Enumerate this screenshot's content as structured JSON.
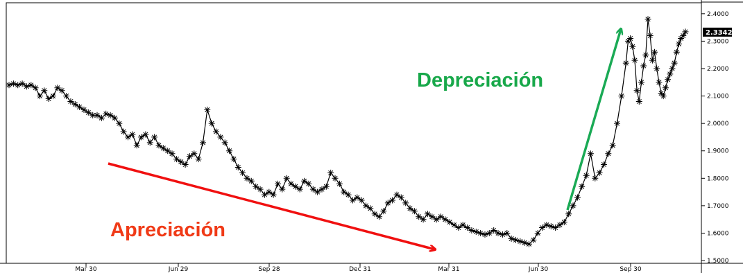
{
  "chart_data": {
    "type": "line",
    "title": "",
    "xlabel": "",
    "ylabel": "",
    "x_ticks": [
      "Mar 30",
      "Jun 29",
      "Sep 28",
      "Dec 31",
      "Mar 31",
      "Jun 30",
      "Sep 30"
    ],
    "y_ticks": [
      "2.4000",
      "2.3000",
      "2.2000",
      "2.1000",
      "2.0000",
      "1.9000",
      "1.8000",
      "1.7000",
      "1.6000",
      "1.5000"
    ],
    "ylim": [
      1.49,
      2.44
    ],
    "grid": false,
    "last_value": "2.3342",
    "annotations": [
      {
        "text": "Depreciación",
        "color": "#18a84a"
      },
      {
        "text": "Apreciación",
        "color": "#f03a17"
      }
    ],
    "arrow_colors": {
      "up": "#1aaa55",
      "down": "#f01010"
    },
    "series": [
      {
        "marker": "asterisk",
        "color": "#000000",
        "points": [
          [
            0,
            2.14
          ],
          [
            2,
            2.145
          ],
          [
            4,
            2.14
          ],
          [
            6,
            2.145
          ],
          [
            8,
            2.135
          ],
          [
            10,
            2.14
          ],
          [
            12,
            2.13
          ],
          [
            14,
            2.1
          ],
          [
            16,
            2.12
          ],
          [
            18,
            2.09
          ],
          [
            20,
            2.1
          ],
          [
            22,
            2.13
          ],
          [
            24,
            2.12
          ],
          [
            26,
            2.1
          ],
          [
            28,
            2.08
          ],
          [
            30,
            2.07
          ],
          [
            32,
            2.06
          ],
          [
            34,
            2.05
          ],
          [
            36,
            2.04
          ],
          [
            38,
            2.03
          ],
          [
            40,
            2.03
          ],
          [
            42,
            2.02
          ],
          [
            44,
            2.035
          ],
          [
            46,
            2.03
          ],
          [
            48,
            2.02
          ],
          [
            50,
            2.0
          ],
          [
            52,
            1.97
          ],
          [
            54,
            1.95
          ],
          [
            56,
            1.96
          ],
          [
            58,
            1.92
          ],
          [
            60,
            1.95
          ],
          [
            62,
            1.96
          ],
          [
            64,
            1.93
          ],
          [
            66,
            1.95
          ],
          [
            68,
            1.92
          ],
          [
            70,
            1.91
          ],
          [
            72,
            1.9
          ],
          [
            74,
            1.89
          ],
          [
            76,
            1.87
          ],
          [
            78,
            1.86
          ],
          [
            80,
            1.85
          ],
          [
            82,
            1.88
          ],
          [
            84,
            1.89
          ],
          [
            86,
            1.87
          ],
          [
            88,
            1.93
          ],
          [
            90,
            2.05
          ],
          [
            92,
            2.0
          ],
          [
            94,
            1.97
          ],
          [
            96,
            1.95
          ],
          [
            98,
            1.93
          ],
          [
            100,
            1.9
          ],
          [
            102,
            1.87
          ],
          [
            104,
            1.84
          ],
          [
            106,
            1.82
          ],
          [
            108,
            1.8
          ],
          [
            110,
            1.79
          ],
          [
            112,
            1.77
          ],
          [
            114,
            1.76
          ],
          [
            116,
            1.74
          ],
          [
            118,
            1.75
          ],
          [
            120,
            1.74
          ],
          [
            122,
            1.78
          ],
          [
            124,
            1.76
          ],
          [
            126,
            1.8
          ],
          [
            128,
            1.78
          ],
          [
            130,
            1.77
          ],
          [
            132,
            1.76
          ],
          [
            134,
            1.79
          ],
          [
            136,
            1.78
          ],
          [
            138,
            1.76
          ],
          [
            140,
            1.75
          ],
          [
            142,
            1.76
          ],
          [
            144,
            1.77
          ],
          [
            146,
            1.82
          ],
          [
            148,
            1.8
          ],
          [
            150,
            1.78
          ],
          [
            152,
            1.75
          ],
          [
            154,
            1.74
          ],
          [
            156,
            1.72
          ],
          [
            158,
            1.73
          ],
          [
            160,
            1.72
          ],
          [
            162,
            1.7
          ],
          [
            164,
            1.69
          ],
          [
            166,
            1.67
          ],
          [
            168,
            1.66
          ],
          [
            170,
            1.68
          ],
          [
            172,
            1.71
          ],
          [
            174,
            1.72
          ],
          [
            176,
            1.74
          ],
          [
            178,
            1.73
          ],
          [
            180,
            1.71
          ],
          [
            182,
            1.69
          ],
          [
            184,
            1.68
          ],
          [
            186,
            1.66
          ],
          [
            188,
            1.65
          ],
          [
            190,
            1.67
          ],
          [
            192,
            1.66
          ],
          [
            194,
            1.65
          ],
          [
            196,
            1.66
          ],
          [
            198,
            1.65
          ],
          [
            200,
            1.64
          ],
          [
            202,
            1.63
          ],
          [
            204,
            1.62
          ],
          [
            206,
            1.63
          ],
          [
            208,
            1.62
          ],
          [
            210,
            1.61
          ],
          [
            212,
            1.605
          ],
          [
            214,
            1.6
          ],
          [
            216,
            1.595
          ],
          [
            218,
            1.6
          ],
          [
            220,
            1.61
          ],
          [
            222,
            1.6
          ],
          [
            224,
            1.595
          ],
          [
            226,
            1.6
          ],
          [
            228,
            1.58
          ],
          [
            230,
            1.575
          ],
          [
            232,
            1.57
          ],
          [
            234,
            1.565
          ],
          [
            236,
            1.56
          ],
          [
            238,
            1.575
          ],
          [
            240,
            1.6
          ],
          [
            242,
            1.62
          ],
          [
            244,
            1.63
          ],
          [
            246,
            1.625
          ],
          [
            248,
            1.62
          ],
          [
            250,
            1.63
          ],
          [
            252,
            1.64
          ],
          [
            254,
            1.67
          ],
          [
            256,
            1.7
          ],
          [
            258,
            1.73
          ],
          [
            260,
            1.77
          ],
          [
            262,
            1.81
          ],
          [
            264,
            1.89
          ],
          [
            266,
            1.8
          ],
          [
            268,
            1.82
          ],
          [
            270,
            1.85
          ],
          [
            272,
            1.89
          ],
          [
            274,
            1.92
          ],
          [
            276,
            2.0
          ],
          [
            278,
            2.1
          ],
          [
            280,
            2.22
          ],
          [
            281,
            2.3
          ],
          [
            282,
            2.31
          ],
          [
            283,
            2.28
          ],
          [
            284,
            2.23
          ],
          [
            285,
            2.12
          ],
          [
            286,
            2.08
          ],
          [
            287,
            2.15
          ],
          [
            288,
            2.21
          ],
          [
            289,
            2.25
          ],
          [
            290,
            2.38
          ],
          [
            291,
            2.32
          ],
          [
            292,
            2.23
          ],
          [
            293,
            2.26
          ],
          [
            294,
            2.2
          ],
          [
            295,
            2.15
          ],
          [
            296,
            2.11
          ],
          [
            297,
            2.1
          ],
          [
            298,
            2.13
          ],
          [
            299,
            2.16
          ],
          [
            300,
            2.18
          ],
          [
            301,
            2.2
          ],
          [
            302,
            2.22
          ],
          [
            303,
            2.26
          ],
          [
            304,
            2.29
          ],
          [
            305,
            2.31
          ],
          [
            306,
            2.32
          ],
          [
            307,
            2.3342
          ]
        ]
      }
    ]
  }
}
